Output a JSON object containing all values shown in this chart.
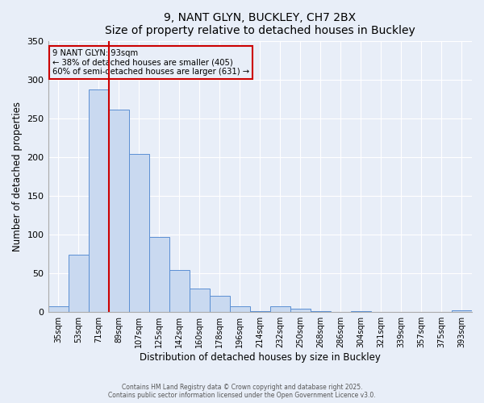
{
  "title": "9, NANT GLYN, BUCKLEY, CH7 2BX",
  "subtitle": "Size of property relative to detached houses in Buckley",
  "xlabel": "Distribution of detached houses by size in Buckley",
  "ylabel": "Number of detached properties",
  "bar_labels": [
    "35sqm",
    "53sqm",
    "71sqm",
    "89sqm",
    "107sqm",
    "125sqm",
    "142sqm",
    "160sqm",
    "178sqm",
    "196sqm",
    "214sqm",
    "232sqm",
    "250sqm",
    "268sqm",
    "286sqm",
    "304sqm",
    "321sqm",
    "339sqm",
    "357sqm",
    "375sqm",
    "393sqm"
  ],
  "bar_heights": [
    8,
    74,
    287,
    261,
    204,
    97,
    54,
    30,
    21,
    7,
    1,
    8,
    4,
    1,
    0,
    1,
    0,
    0,
    0,
    0,
    2
  ],
  "bar_color": "#c9d9f0",
  "bar_edge_color": "#5b8fd4",
  "vline_color": "#cc0000",
  "annotation_title": "9 NANT GLYN: 93sqm",
  "annotation_line1": "← 38% of detached houses are smaller (405)",
  "annotation_line2": "60% of semi-detached houses are larger (631) →",
  "annotation_box_edge_color": "#cc0000",
  "ylim": [
    0,
    350
  ],
  "yticks": [
    0,
    50,
    100,
    150,
    200,
    250,
    300,
    350
  ],
  "footer1": "Contains HM Land Registry data © Crown copyright and database right 2025.",
  "footer2": "Contains public sector information licensed under the Open Government Licence v3.0.",
  "bg_color": "#e8eef8",
  "plot_bg_color": "#e8eef8",
  "grid_color": "#ffffff"
}
